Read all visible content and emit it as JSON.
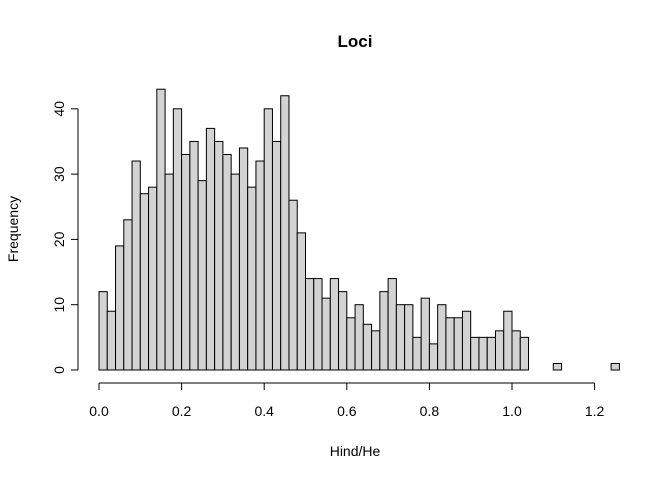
{
  "chart_data": {
    "type": "bar",
    "subtype": "histogram",
    "title": "Loci",
    "xlabel": "Hind/He",
    "ylabel": "Frequency",
    "bin_width": 0.02,
    "bin_start": 0.0,
    "xlim": [
      0.0,
      1.24
    ],
    "ylim": [
      0,
      43
    ],
    "x_ticks": [
      0.0,
      0.2,
      0.4,
      0.6,
      0.8,
      1.0,
      1.2
    ],
    "x_tick_labels": [
      "0.0",
      "0.2",
      "0.4",
      "0.6",
      "0.8",
      "1.0",
      "1.2"
    ],
    "y_ticks": [
      0,
      10,
      20,
      30,
      40
    ],
    "y_tick_labels": [
      "0",
      "10",
      "20",
      "30",
      "40"
    ],
    "values": [
      12,
      9,
      19,
      23,
      32,
      27,
      28,
      43,
      30,
      40,
      33,
      35,
      29,
      37,
      35,
      33,
      30,
      34,
      28,
      32,
      40,
      35,
      42,
      26,
      21,
      14,
      14,
      11,
      14,
      12,
      8,
      10,
      7,
      6,
      12,
      14,
      10,
      10,
      5,
      11,
      4,
      10,
      8,
      8,
      9,
      5,
      5,
      5,
      6,
      9,
      6,
      5,
      0,
      0,
      0,
      1,
      0,
      0,
      0,
      0,
      0,
      0,
      1
    ],
    "bar_fill": "#d3d3d3",
    "bar_stroke": "#000000",
    "grid": false,
    "legend": "none"
  }
}
